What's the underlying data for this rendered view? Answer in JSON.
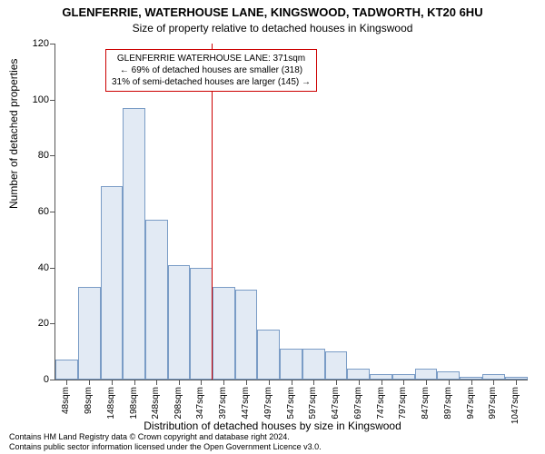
{
  "title_line1": "GLENFERRIE, WATERHOUSE LANE, KINGSWOOD, TADWORTH, KT20 6HU",
  "title_line2": "Size of property relative to detached houses in Kingswood",
  "ylabel": "Number of detached properties",
  "xlabel": "Distribution of detached houses by size in Kingswood",
  "footer_line1": "Contains HM Land Registry data © Crown copyright and database right 2024.",
  "footer_line2": "Contains public sector information licensed under the Open Government Licence v3.0.",
  "chart": {
    "type": "histogram",
    "ylim": [
      0,
      120
    ],
    "yticks": [
      0,
      20,
      40,
      60,
      80,
      100,
      120
    ],
    "xlim": [
      23,
      1073
    ],
    "xticks": [
      48,
      98,
      148,
      198,
      248,
      298,
      347,
      397,
      447,
      497,
      547,
      597,
      647,
      697,
      747,
      797,
      847,
      897,
      947,
      997,
      1047
    ],
    "xtick_suffix": "sqm",
    "bar_fill": "#e2eaf4",
    "bar_stroke": "#7a9cc6",
    "bars": [
      {
        "x0": 23,
        "x1": 73,
        "y": 7
      },
      {
        "x0": 73,
        "x1": 123,
        "y": 33
      },
      {
        "x0": 123,
        "x1": 173,
        "y": 69
      },
      {
        "x0": 173,
        "x1": 223,
        "y": 97
      },
      {
        "x0": 223,
        "x1": 273,
        "y": 57
      },
      {
        "x0": 273,
        "x1": 322,
        "y": 41
      },
      {
        "x0": 322,
        "x1": 372,
        "y": 40
      },
      {
        "x0": 372,
        "x1": 422,
        "y": 33
      },
      {
        "x0": 422,
        "x1": 472,
        "y": 32
      },
      {
        "x0": 472,
        "x1": 522,
        "y": 18
      },
      {
        "x0": 522,
        "x1": 572,
        "y": 11
      },
      {
        "x0": 572,
        "x1": 622,
        "y": 11
      },
      {
        "x0": 622,
        "x1": 672,
        "y": 10
      },
      {
        "x0": 672,
        "x1": 722,
        "y": 4
      },
      {
        "x0": 722,
        "x1": 772,
        "y": 2
      },
      {
        "x0": 772,
        "x1": 822,
        "y": 2
      },
      {
        "x0": 822,
        "x1": 872,
        "y": 4
      },
      {
        "x0": 872,
        "x1": 922,
        "y": 3
      },
      {
        "x0": 922,
        "x1": 972,
        "y": 1
      },
      {
        "x0": 972,
        "x1": 1022,
        "y": 2
      },
      {
        "x0": 1022,
        "x1": 1073,
        "y": 1
      }
    ],
    "reference_x": 371,
    "reference_color": "#cc0000",
    "annotation": {
      "line1": "GLENFERRIE WATERHOUSE LANE: 371sqm",
      "line2": "← 69% of detached houses are smaller (318)",
      "line3": "31% of semi-detached houses are larger (145) →"
    },
    "background_color": "#ffffff",
    "axis_color": "#555555",
    "tick_fontsize": 11,
    "label_fontsize": 12,
    "title_fontsize": 13
  }
}
